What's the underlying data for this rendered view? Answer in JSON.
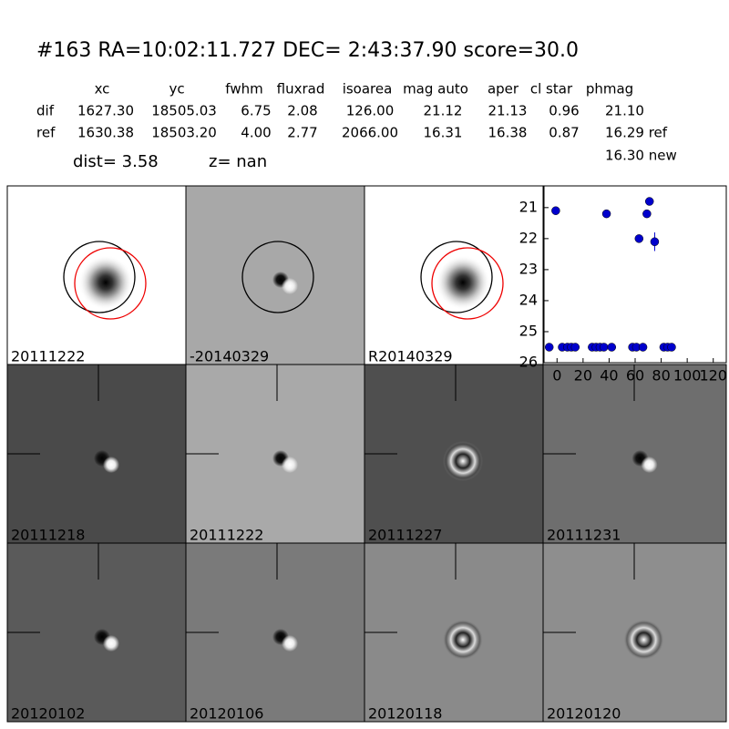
{
  "header": {
    "title": "#163   RA=10:02:11.727 DEC= 2:43:37.90       score=30.0",
    "columns": [
      "xc",
      "yc",
      "fwhm",
      "fluxrad",
      "isoarea",
      "mag auto",
      "aper",
      "cl star",
      "phmag"
    ],
    "rows": [
      [
        "dif",
        "1627.30",
        "18505.03",
        "6.75",
        "2.08",
        "126.00",
        "21.12",
        "21.13",
        "0.96",
        "21.10"
      ],
      [
        "ref",
        "1630.38",
        "18503.20",
        "4.00",
        "2.77",
        "2066.00",
        "16.31",
        "16.38",
        "0.87",
        "16.29 ref"
      ]
    ],
    "extra": "16.30 new",
    "dist": "dist=  3.58",
    "z": "z=   nan"
  },
  "stamps": [
    {
      "label": "20111222",
      "color": "#000000"
    },
    {
      "label": "-20140329",
      "color": "#000000"
    },
    {
      "label": "R20140329",
      "color": "#000000"
    },
    {
      "label": "20111218",
      "color": "#000000"
    },
    {
      "label": "20111222",
      "color": "#ff0000"
    },
    {
      "label": "20111227",
      "color": "#000000"
    },
    {
      "label": "20111231",
      "color": "#000000"
    },
    {
      "label": "20120102",
      "color": "#000000"
    },
    {
      "label": "20120106",
      "color": "#000000"
    },
    {
      "label": "20120118",
      "color": "#000000"
    },
    {
      "label": "20120120",
      "color": "#000000"
    }
  ],
  "chart_data": {
    "type": "scatter",
    "color": "#0000cc",
    "x": [
      -6,
      4,
      8,
      11,
      14,
      27,
      30,
      33,
      36,
      42,
      58,
      61,
      66,
      82,
      85,
      88,
      -1,
      38,
      63,
      69,
      71,
      75
    ],
    "values": [
      25.5,
      25.5,
      25.5,
      25.5,
      25.5,
      25.5,
      25.5,
      25.5,
      25.5,
      25.5,
      25.5,
      25.5,
      25.5,
      25.5,
      25.5,
      25.5,
      21.1,
      21.2,
      22.0,
      21.2,
      20.8,
      22.1
    ],
    "yerr": [
      0.03,
      0.03,
      0.03,
      0.03,
      0.03,
      0.03,
      0.03,
      0.03,
      0.03,
      0.03,
      0.03,
      0.03,
      0.03,
      0.03,
      0.03,
      0.03,
      0.03,
      0.03,
      0.1,
      0.03,
      0.03,
      0.3
    ],
    "xlim": [
      -10,
      130
    ],
    "ylim": [
      26,
      20.3
    ],
    "xticks": [
      0,
      20,
      40,
      60,
      80,
      100,
      120
    ],
    "yticks": [
      21,
      22,
      23,
      24,
      25,
      26
    ]
  }
}
